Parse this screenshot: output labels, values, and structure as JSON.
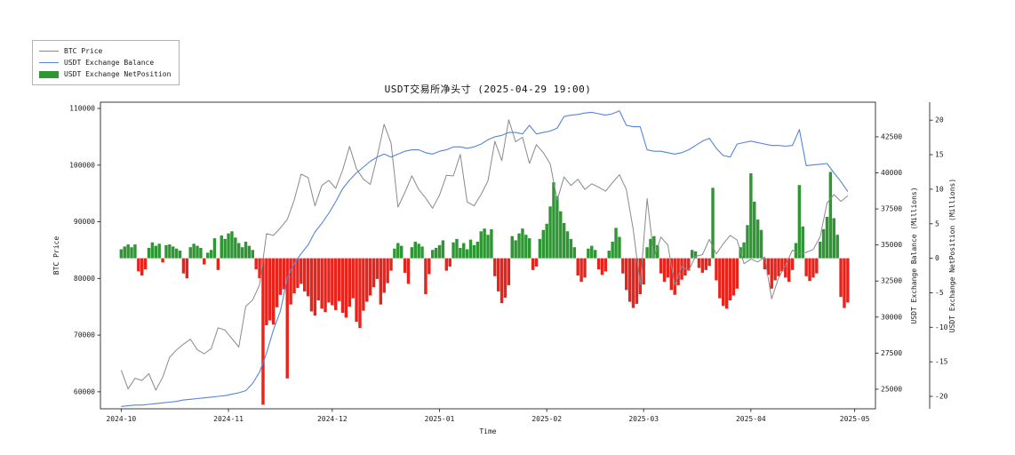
{
  "figure": {
    "title": "USDT交易所净头寸 (2025-04-29 19:00)",
    "xlabel": "Time",
    "ylabel_left": "BTC Price",
    "ylabel_right_balance": "USDT Exchange Balance (Millions)",
    "ylabel_right_netposition": "USDT Exchange NetPosition (Millions)",
    "colors": {
      "btc_line": "#8a8a8a",
      "balance_line": "#5585d8",
      "netposition_positive": "#2e9632",
      "netposition_negative": "#e8231c",
      "spine": "#262626",
      "text": "#1a1a1a"
    }
  },
  "legend": {
    "items": [
      {
        "label": "BTC Price",
        "swatch": "line",
        "color": "#8a8a8a"
      },
      {
        "label": "USDT Exchange Balance",
        "swatch": "line",
        "color": "#5585d8"
      },
      {
        "label": "USDT Exchange NetPosition",
        "swatch": "rect",
        "color": "#2e9632"
      }
    ]
  },
  "chart_data": {
    "type": "mixed",
    "x_unit": "days offset from 2024-10-01",
    "x_axis": {
      "label": "Time",
      "tick_labels": [
        "2024-10",
        "2024-11",
        "2024-12",
        "2025-01",
        "2025-02",
        "2025-03",
        "2025-04",
        "2025-05"
      ],
      "tick_days": [
        0,
        31,
        61,
        92,
        123,
        151,
        182,
        212
      ],
      "xlim_days": [
        -6,
        218
      ]
    },
    "y_axes": {
      "price": {
        "label": "BTC Price",
        "side": "left",
        "ticks": [
          60000,
          70000,
          80000,
          90000,
          100000,
          110000
        ],
        "lim": [
          57000,
          111100
        ]
      },
      "balance": {
        "label": "USDT Exchange Balance (Millions)",
        "side": "right",
        "ticks": [
          25000,
          27500,
          30000,
          32500,
          35000,
          37500,
          40000,
          42500
        ],
        "lim": [
          23640,
          44900
        ]
      },
      "netposition": {
        "label": "USDT Exchange NetPosition (Millions)",
        "side": "right-offset",
        "ticks": [
          -20,
          -15,
          -10,
          -5,
          0,
          5,
          10,
          15,
          20
        ],
        "lim": [
          -21.8,
          22.6
        ]
      }
    },
    "series": [
      {
        "name": "BTC Price",
        "data_name": "btc-price-line",
        "type": "line",
        "axis": "price",
        "color": "#8a8a8a",
        "width": 1.0,
        "x_start_day": 0,
        "x_step_days": 2,
        "values": [
          63800,
          60500,
          62400,
          62000,
          63200,
          60300,
          62600,
          66100,
          67400,
          68400,
          69300,
          67400,
          66700,
          67600,
          71300,
          70900,
          69400,
          67900,
          75100,
          76200,
          78900,
          87900,
          87600,
          88900,
          90400,
          93800,
          98400,
          97800,
          92800,
          96400,
          97300,
          95900,
          99100,
          103300,
          99300,
          97500,
          96600,
          101500,
          107200,
          103900,
          92600,
          95200,
          98100,
          95700,
          94200,
          92400,
          94700,
          98200,
          98100,
          101900,
          93500,
          92800,
          94800,
          97200,
          104200,
          100800,
          108000,
          104100,
          104900,
          100300,
          103600,
          102200,
          100200,
          93800,
          97900,
          96400,
          97500,
          95700,
          96700,
          96100,
          95400,
          96900,
          98300,
          95700,
          88600,
          78900,
          94100,
          83600,
          87300,
          85900,
          78800,
          82100,
          81400,
          83900,
          84200,
          86900,
          84300,
          86100,
          87600,
          86800,
          82600,
          83400,
          82900,
          83800,
          76400,
          80100,
          82300,
          85000,
          84300,
          84600,
          85100,
          87300,
          93300,
          94800,
          93600,
          94600
        ]
      },
      {
        "name": "USDT Exchange Balance",
        "data_name": "usdt-balance-line",
        "type": "line",
        "axis": "balance",
        "color": "#5585d8",
        "width": 1.1,
        "x_start_day": 0,
        "x_step_days": 2,
        "values": [
          23800,
          23850,
          23900,
          23900,
          23950,
          24000,
          24050,
          24100,
          24150,
          24250,
          24300,
          24350,
          24400,
          24450,
          24500,
          24550,
          24650,
          24750,
          24900,
          25400,
          26200,
          27500,
          29100,
          30400,
          32700,
          33700,
          34400,
          35000,
          35900,
          36500,
          37200,
          38000,
          38900,
          39500,
          40000,
          40400,
          40800,
          41100,
          41300,
          41100,
          41300,
          41500,
          41600,
          41600,
          41400,
          41300,
          41500,
          41600,
          41800,
          41800,
          41700,
          41800,
          42000,
          42300,
          42500,
          42600,
          42800,
          42800,
          42700,
          43300,
          42700,
          42800,
          42900,
          43100,
          43900,
          44000,
          44050,
          44150,
          44200,
          44100,
          44000,
          44100,
          44300,
          43300,
          43200,
          43200,
          41600,
          41500,
          41500,
          41400,
          41300,
          41400,
          41600,
          41900,
          42200,
          42400,
          41700,
          41200,
          41100,
          42000,
          42100,
          42200,
          42100,
          42000,
          41900,
          41900,
          41850,
          41900,
          43000,
          40500,
          40550,
          40600,
          40650,
          40000,
          39400,
          38700
        ]
      },
      {
        "name": "USDT Exchange NetPosition",
        "data_name": "netposition-bars",
        "type": "bar",
        "axis": "netposition",
        "color_positive": "#2e9632",
        "color_negative": "#e8231c",
        "x_start_day": 0,
        "x_step_days": 1,
        "values": [
          1.3,
          1.7,
          2.0,
          1.6,
          2.0,
          -1.9,
          -2.5,
          -1.6,
          1.5,
          2.3,
          1.8,
          2.1,
          -0.6,
          1.9,
          2.0,
          1.7,
          1.4,
          1.1,
          -2.2,
          -2.9,
          1.6,
          2.1,
          1.8,
          1.5,
          -0.9,
          0.8,
          1.2,
          2.9,
          -1.7,
          3.3,
          2.8,
          3.6,
          3.9,
          3.0,
          2.2,
          1.6,
          2.4,
          1.8,
          1.2,
          -1.6,
          -2.9,
          -21.2,
          -9.7,
          -9.0,
          -9.6,
          -7.1,
          -5.3,
          -4.5,
          -17.4,
          -6.7,
          -5.1,
          -4.3,
          -3.7,
          -4.8,
          -5.5,
          -7.7,
          -8.3,
          -6.1,
          -7.3,
          -7.8,
          -6.4,
          -6.8,
          -7.5,
          -6.2,
          -7.9,
          -8.6,
          -7.0,
          -5.8,
          -9.2,
          -10.1,
          -7.6,
          -6.3,
          -5.4,
          -4.2,
          -3.0,
          -6.7,
          -5.0,
          -3.6,
          -1.8,
          1.4,
          2.2,
          1.8,
          -2.1,
          -3.7,
          1.6,
          2.4,
          2.1,
          1.7,
          -5.2,
          -2.3,
          1.2,
          1.5,
          1.9,
          2.6,
          -1.8,
          -1.2,
          2.3,
          2.8,
          1.5,
          2.2,
          1.3,
          2.7,
          1.9,
          2.4,
          3.9,
          4.3,
          3.4,
          4.2,
          -2.6,
          -4.8,
          -6.5,
          -5.7,
          -3.9,
          3.2,
          2.6,
          3.6,
          4.3,
          3.4,
          2.9,
          -1.7,
          -1.2,
          2.8,
          4.1,
          5.0,
          7.5,
          11.0,
          9.0,
          6.8,
          5.1,
          3.9,
          2.8,
          1.6,
          -2.5,
          -3.4,
          -2.8,
          1.4,
          1.8,
          1.2,
          -1.6,
          -2.4,
          -1.9,
          1.1,
          2.4,
          4.4,
          3.1,
          -2.2,
          -4.6,
          -6.3,
          -7.2,
          -6.6,
          -5.2,
          -3.8,
          1.6,
          2.8,
          3.2,
          1.9,
          -2.2,
          -3.4,
          -2.8,
          -4.6,
          -5.3,
          -3.9,
          -3.1,
          -2.5,
          -1.8,
          1.2,
          1.0,
          -1.4,
          -2.1,
          -1.7,
          -1.1,
          10.2,
          -3.2,
          -5.8,
          -6.9,
          -7.3,
          -6.1,
          -5.4,
          -4.4,
          1.6,
          2.3,
          4.8,
          12.3,
          8.2,
          5.6,
          4.1,
          -1.6,
          -2.4,
          -4.4,
          -3.2,
          -2.6,
          -1.9,
          -2.8,
          -3.4,
          -1.7,
          2.2,
          10.6,
          4.6,
          -2.6,
          -3.3,
          -2.8,
          -2.2,
          2.4,
          4.2,
          6.0,
          12.5,
          5.8,
          3.4,
          -5.6,
          -7.2,
          -6.4
        ]
      }
    ]
  }
}
